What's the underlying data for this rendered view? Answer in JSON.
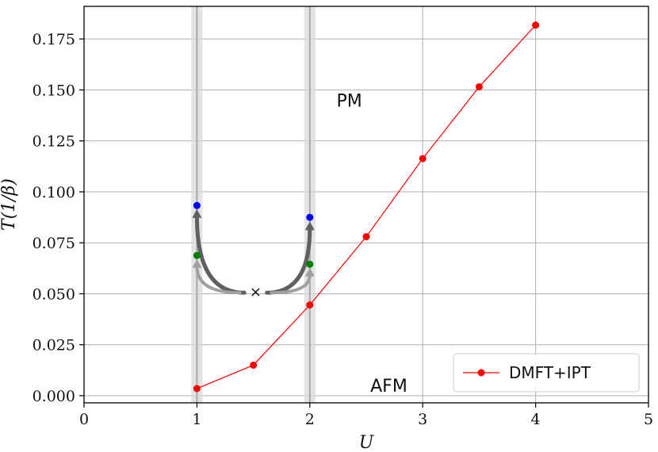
{
  "chart_data": {
    "type": "line",
    "xlabel": "U",
    "ylabel": "T(1/β)",
    "xlim": [
      0,
      5
    ],
    "ylim": [
      -0.0035,
      0.191
    ],
    "grid": true,
    "x_ticks": [
      0,
      1,
      2,
      3,
      4,
      5
    ],
    "y_ticks": [
      0.0,
      0.025,
      0.05,
      0.075,
      0.1,
      0.125,
      0.15,
      0.175
    ],
    "x_tick_labels": [
      "0",
      "1",
      "2",
      "3",
      "4",
      "5"
    ],
    "y_tick_labels": [
      "0.000",
      "0.025",
      "0.050",
      "0.075",
      "0.100",
      "0.125",
      "0.150",
      "0.175"
    ],
    "legend_position": "lower-right",
    "series": [
      {
        "name": "DMFT+IPT",
        "color": "#ff0000",
        "x": [
          1.0,
          1.5,
          2.0,
          2.5,
          3.0,
          3.5,
          4.0
        ],
        "y": [
          0.0035,
          0.015,
          0.0445,
          0.078,
          0.1163,
          0.1515,
          0.1818
        ]
      }
    ],
    "annotations": {
      "regions": [
        {
          "label": "PM",
          "x": 2.35,
          "y": 0.145
        },
        {
          "label": "AFM",
          "x": 2.7,
          "y": 0.005
        }
      ],
      "shaded_bands_x": [
        1.0,
        2.0
      ],
      "start_marker": {
        "symbol": "×",
        "x": 1.52,
        "y": 0.051
      },
      "markers": [
        {
          "x": 1.0,
          "y": 0.0933,
          "color": "#0000ff"
        },
        {
          "x": 1.0,
          "y": 0.0688,
          "color": "#008000"
        },
        {
          "x": 2.0,
          "y": 0.0875,
          "color": "#0000ff"
        },
        {
          "x": 2.0,
          "y": 0.0645,
          "color": "#008000"
        }
      ],
      "arrows": [
        {
          "from": [
            1.42,
            0.0505
          ],
          "to": [
            1.0,
            0.0915
          ],
          "shade": "dark"
        },
        {
          "from": [
            1.62,
            0.0505
          ],
          "to": [
            2.0,
            0.0855
          ],
          "shade": "dark"
        },
        {
          "from": [
            1.38,
            0.0505
          ],
          "to": [
            1.0,
            0.067
          ],
          "shade": "light"
        },
        {
          "from": [
            1.66,
            0.0505
          ],
          "to": [
            2.0,
            0.0628
          ],
          "shade": "light"
        }
      ]
    }
  }
}
